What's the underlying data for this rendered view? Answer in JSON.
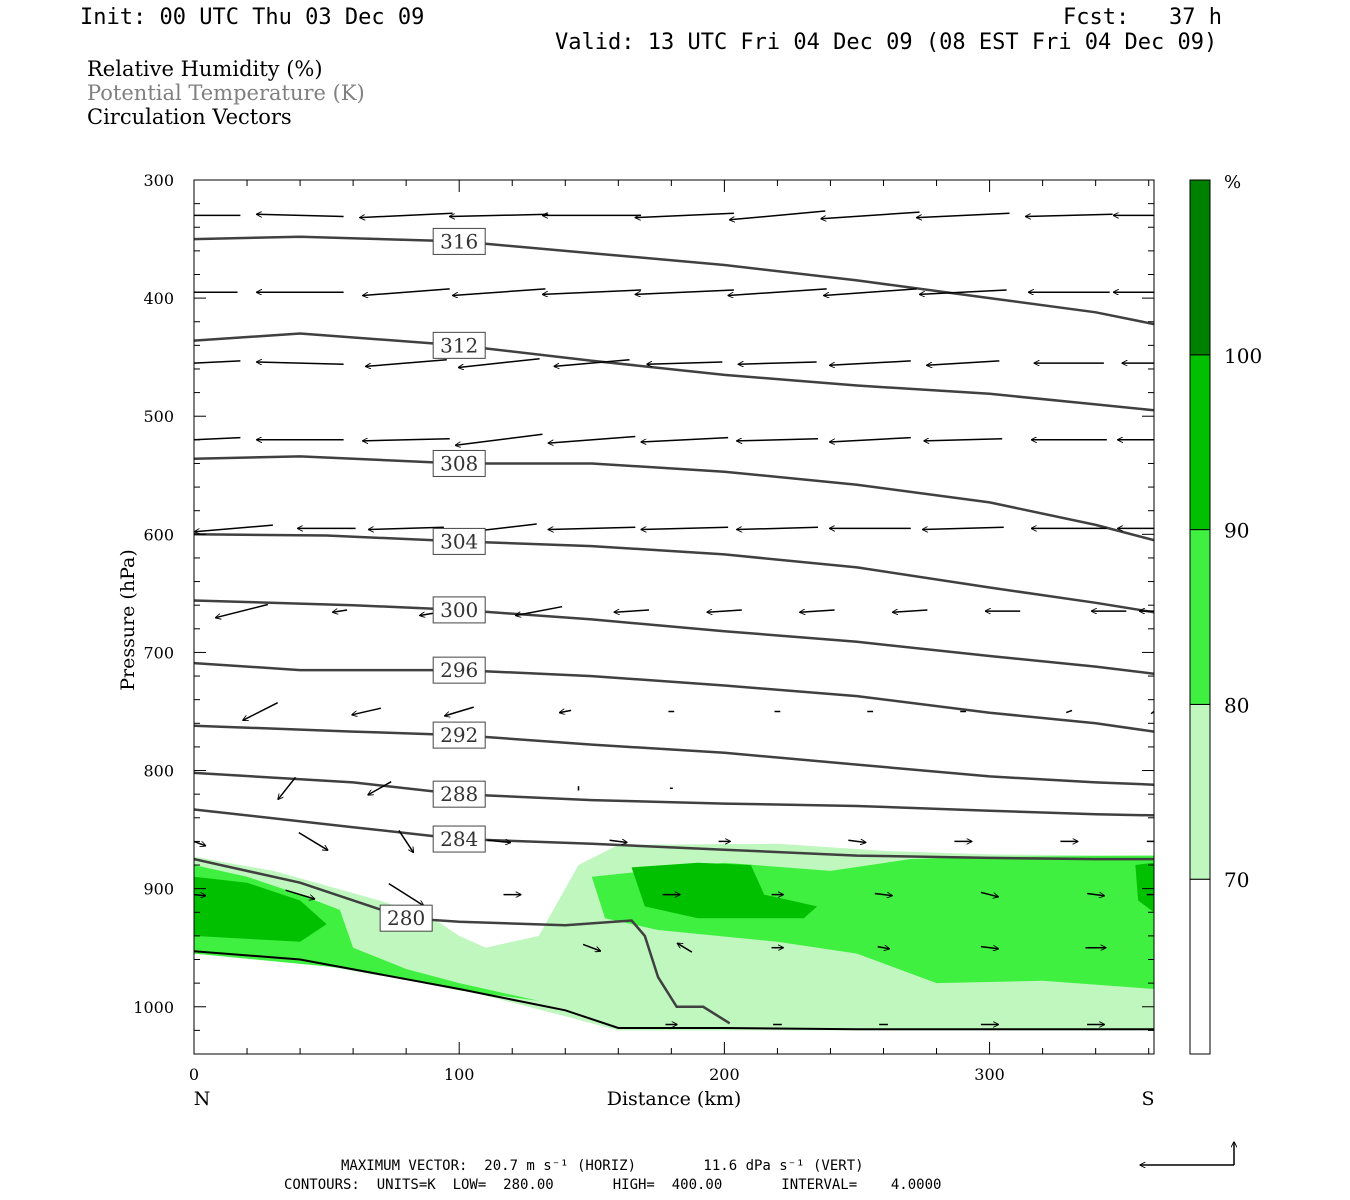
{
  "header": {
    "init": "Init: 00 UTC Thu 03 Dec 09",
    "fcst": "Fcst:   37 h",
    "valid": "Valid: 13 UTC Fri 04 Dec 09 (08 EST Fri 04 Dec 09)"
  },
  "legend": {
    "rh": "Relative Humidity (%)",
    "theta": "Potential Temperature (K)",
    "vectors": "Circulation Vectors"
  },
  "colors": {
    "rh70": "#bff7bf",
    "rh80": "#40f040",
    "rh90": "#00c000",
    "rh100": "#008000",
    "contour": "#404040",
    "theta_text": "#808080"
  },
  "chart_data": {
    "type": "cross-section",
    "xlabel": "Distance (km)",
    "ylabel": "Pressure (hPa)",
    "xlim": [
      0,
      362
    ],
    "ylim": [
      1040,
      300
    ],
    "x_ticks": [
      "0",
      "100",
      "200",
      "300"
    ],
    "x_tick_values": [
      0,
      100,
      200,
      300
    ],
    "y_ticks": [
      "300",
      "400",
      "500",
      "600",
      "700",
      "800",
      "900",
      "1000"
    ],
    "y_tick_values": [
      300,
      400,
      500,
      600,
      700,
      800,
      900,
      1000
    ],
    "end_labels": {
      "left": "N",
      "right": "S"
    },
    "colorbar": {
      "unit": "%",
      "labels": [
        "70",
        "80",
        "90",
        "100"
      ],
      "levels": [
        70,
        80,
        90,
        100
      ]
    },
    "theta_contours": [
      {
        "label": "316",
        "points": [
          [
            0,
            350
          ],
          [
            40,
            348
          ],
          [
            100,
            352
          ],
          [
            150,
            362
          ],
          [
            200,
            372
          ],
          [
            250,
            385
          ],
          [
            300,
            400
          ],
          [
            340,
            412
          ],
          [
            362,
            422
          ]
        ]
      },
      {
        "label": "312",
        "points": [
          [
            0,
            436
          ],
          [
            40,
            430
          ],
          [
            100,
            440
          ],
          [
            150,
            453
          ],
          [
            200,
            465
          ],
          [
            250,
            474
          ],
          [
            300,
            481
          ],
          [
            340,
            490
          ],
          [
            362,
            495
          ]
        ]
      },
      {
        "label": "308",
        "points": [
          [
            0,
            536
          ],
          [
            40,
            534
          ],
          [
            100,
            540
          ],
          [
            150,
            540
          ],
          [
            200,
            547
          ],
          [
            250,
            558
          ],
          [
            300,
            573
          ],
          [
            340,
            592
          ],
          [
            362,
            605
          ]
        ]
      },
      {
        "label": "304",
        "points": [
          [
            0,
            600
          ],
          [
            50,
            601
          ],
          [
            100,
            606
          ],
          [
            150,
            610
          ],
          [
            200,
            617
          ],
          [
            250,
            628
          ],
          [
            300,
            645
          ],
          [
            340,
            658
          ],
          [
            362,
            666
          ]
        ]
      },
      {
        "label": "300",
        "points": [
          [
            0,
            656
          ],
          [
            60,
            660
          ],
          [
            100,
            664
          ],
          [
            150,
            672
          ],
          [
            200,
            682
          ],
          [
            250,
            691
          ],
          [
            300,
            703
          ],
          [
            340,
            712
          ],
          [
            362,
            718
          ]
        ]
      },
      {
        "label": "296",
        "points": [
          [
            0,
            709
          ],
          [
            40,
            715
          ],
          [
            100,
            715
          ],
          [
            150,
            720
          ],
          [
            200,
            728
          ],
          [
            250,
            737
          ],
          [
            300,
            751
          ],
          [
            340,
            760
          ],
          [
            362,
            767
          ]
        ]
      },
      {
        "label": "292",
        "points": [
          [
            0,
            762
          ],
          [
            60,
            767
          ],
          [
            100,
            770
          ],
          [
            150,
            778
          ],
          [
            200,
            785
          ],
          [
            250,
            795
          ],
          [
            300,
            805
          ],
          [
            340,
            810
          ],
          [
            362,
            812
          ]
        ]
      },
      {
        "label": "288",
        "points": [
          [
            0,
            802
          ],
          [
            60,
            810
          ],
          [
            100,
            820
          ],
          [
            150,
            825
          ],
          [
            200,
            828
          ],
          [
            250,
            830
          ],
          [
            300,
            834
          ],
          [
            340,
            837
          ],
          [
            362,
            838
          ]
        ]
      },
      {
        "label": "284",
        "points": [
          [
            0,
            833
          ],
          [
            60,
            848
          ],
          [
            100,
            858
          ],
          [
            150,
            862
          ],
          [
            200,
            867
          ],
          [
            250,
            872
          ],
          [
            300,
            874
          ],
          [
            340,
            875
          ],
          [
            362,
            875
          ]
        ]
      },
      {
        "label": "280",
        "points": [
          [
            0,
            875
          ],
          [
            40,
            895
          ],
          [
            80,
            925
          ],
          [
            100,
            928
          ],
          [
            140,
            931
          ],
          [
            165,
            927
          ],
          [
            170,
            940
          ],
          [
            175,
            975
          ],
          [
            182,
            1000
          ],
          [
            192,
            1000
          ],
          [
            202,
            1014
          ]
        ]
      }
    ],
    "ground": [
      [
        0,
        953
      ],
      [
        40,
        960
      ],
      [
        100,
        985
      ],
      [
        140,
        1003
      ],
      [
        160,
        1018
      ],
      [
        200,
        1018
      ],
      [
        250,
        1019
      ],
      [
        300,
        1019
      ],
      [
        362,
        1019
      ]
    ],
    "rh_regions": [
      {
        "level": 70,
        "points": [
          [
            0,
            873
          ],
          [
            30,
            885
          ],
          [
            70,
            910
          ],
          [
            90,
            925
          ],
          [
            100,
            940
          ],
          [
            110,
            950
          ],
          [
            130,
            940
          ],
          [
            145,
            880
          ],
          [
            160,
            863
          ],
          [
            220,
            862
          ],
          [
            260,
            868
          ],
          [
            300,
            871
          ],
          [
            362,
            872
          ],
          [
            362,
            1020
          ],
          [
            160,
            1020
          ],
          [
            140,
            1008
          ],
          [
            100,
            985
          ],
          [
            40,
            962
          ],
          [
            0,
            955
          ]
        ]
      },
      {
        "level": 80,
        "points": [
          [
            0,
            880
          ],
          [
            20,
            890
          ],
          [
            40,
            905
          ],
          [
            55,
            918
          ],
          [
            60,
            950
          ],
          [
            80,
            968
          ],
          [
            100,
            980
          ],
          [
            120,
            990
          ],
          [
            130,
            995
          ],
          [
            100,
            986
          ],
          [
            60,
            968
          ],
          [
            0,
            955
          ]
        ]
      },
      {
        "level": 80,
        "points": [
          [
            150,
            890
          ],
          [
            200,
            878
          ],
          [
            240,
            885
          ],
          [
            270,
            875
          ],
          [
            300,
            873
          ],
          [
            362,
            872
          ],
          [
            362,
            985
          ],
          [
            320,
            978
          ],
          [
            280,
            980
          ],
          [
            250,
            955
          ],
          [
            220,
            945
          ],
          [
            175,
            935
          ],
          [
            155,
            925
          ]
        ]
      },
      {
        "level": 90,
        "points": [
          [
            0,
            890
          ],
          [
            20,
            895
          ],
          [
            40,
            910
          ],
          [
            50,
            930
          ],
          [
            40,
            945
          ],
          [
            0,
            940
          ]
        ]
      },
      {
        "level": 90,
        "points": [
          [
            165,
            882
          ],
          [
            190,
            878
          ],
          [
            210,
            880
          ],
          [
            215,
            905
          ],
          [
            235,
            915
          ],
          [
            230,
            925
          ],
          [
            190,
            925
          ],
          [
            170,
            915
          ]
        ]
      },
      {
        "level": 90,
        "points": [
          [
            355,
            880
          ],
          [
            362,
            878
          ],
          [
            362,
            920
          ],
          [
            356,
            910
          ]
        ]
      }
    ],
    "contours_label_meta": {
      "units": "K",
      "low": 280.0,
      "high": 400.0,
      "interval": 4.0
    },
    "vector_rows": [
      {
        "p": 330,
        "x": [
          0,
          40,
          80,
          115,
          150,
          185,
          220,
          255,
          290,
          330,
          362
        ],
        "u": [
          -32,
          -30,
          -32,
          -34,
          -34,
          -34,
          -33,
          -34,
          -32,
          -30,
          -28
        ],
        "w": [
          0,
          1,
          -2,
          -1,
          0,
          -2,
          -4,
          -3,
          -2,
          -1,
          0
        ]
      },
      {
        "p": 395,
        "x": [
          0,
          40,
          80,
          115,
          150,
          185,
          220,
          255,
          290,
          330,
          362
        ],
        "u": [
          -30,
          -30,
          -30,
          -32,
          -34,
          -34,
          -34,
          -32,
          -30,
          -28,
          -28
        ],
        "w": [
          0,
          0,
          -3,
          -3,
          -2,
          -2,
          -3,
          -3,
          -2,
          0,
          0
        ]
      },
      {
        "p": 455,
        "x": [
          0,
          40,
          80,
          115,
          150,
          185,
          220,
          255,
          290,
          330,
          362
        ],
        "u": [
          -32,
          -30,
          -28,
          -28,
          -26,
          -26,
          -27,
          -28,
          -25,
          -24,
          -22
        ],
        "w": [
          -2,
          1,
          -3,
          -4,
          -3,
          -1,
          -1,
          -2,
          -2,
          0,
          0
        ]
      },
      {
        "p": 520,
        "x": [
          0,
          40,
          80,
          115,
          150,
          185,
          220,
          255,
          290,
          330,
          362
        ],
        "u": [
          -32,
          -30,
          -30,
          -30,
          -30,
          -30,
          -28,
          -28,
          -27,
          -26,
          -25
        ],
        "w": [
          -2,
          0,
          -1,
          -5,
          -3,
          -2,
          -1,
          -2,
          -1,
          0,
          0
        ]
      },
      {
        "p": 595,
        "x": [
          15,
          50,
          80,
          115,
          150,
          185,
          220,
          255,
          290,
          330,
          362
        ],
        "u": [
          -27,
          -20,
          -26,
          -26,
          -30,
          -30,
          -28,
          -28,
          -28,
          -26,
          -25
        ],
        "w": [
          -3,
          0,
          -1,
          -4,
          -1,
          -1,
          -1,
          0,
          -1,
          0,
          0
        ]
      },
      {
        "p": 665,
        "x": [
          18,
          55,
          95,
          130,
          165,
          200,
          235,
          270,
          305,
          345,
          362
        ],
        "u": [
          -18,
          -5,
          -18,
          -16,
          -12,
          -12,
          -12,
          -12,
          -12,
          -12,
          -10
        ],
        "w": [
          -6,
          -1,
          -4,
          -4,
          -1,
          -1,
          -1,
          -1,
          0,
          0,
          0
        ]
      },
      {
        "p": 750,
        "x": [
          25,
          65,
          100,
          140,
          180,
          220,
          255,
          290,
          330,
          362
        ],
        "u": [
          -12,
          -10,
          -10,
          -4,
          -2,
          -2,
          -2,
          -2,
          -2,
          -2
        ],
        "w": [
          -8,
          -3,
          -4,
          -1,
          0,
          0,
          0,
          0,
          -1,
          -2
        ]
      },
      {
        "p": 815,
        "x": [
          35,
          70,
          105,
          145,
          180,
          220,
          255,
          290,
          330,
          362
        ],
        "u": [
          -6,
          -8,
          -8,
          0,
          1,
          0,
          0,
          0,
          0,
          0
        ],
        "w": [
          -10,
          -6,
          -1,
          -2,
          0,
          0,
          0,
          0,
          0,
          0
        ]
      },
      {
        "p": 860,
        "x": [
          0,
          45,
          80,
          115,
          160,
          200,
          250,
          290,
          330,
          362
        ],
        "u": [
          8,
          10,
          5,
          8,
          6,
          4,
          6,
          6,
          6,
          5
        ],
        "w": [
          -4,
          -8,
          -10,
          -1,
          -1,
          0,
          -1,
          0,
          0,
          0
        ]
      },
      {
        "p": 905,
        "x": [
          0,
          40,
          80,
          120,
          180,
          220,
          260,
          300,
          340,
          362
        ],
        "u": [
          8,
          10,
          12,
          6,
          6,
          4,
          6,
          6,
          6,
          5
        ],
        "w": [
          -1,
          -4,
          -10,
          0,
          0,
          0,
          -1,
          -2,
          -1,
          0
        ]
      },
      {
        "p": 950,
        "x": [
          150,
          185,
          220,
          260,
          300,
          340
        ],
        "u": [
          6,
          -5,
          4,
          4,
          6,
          7
        ],
        "w": [
          -3,
          4,
          0,
          -1,
          -1,
          0
        ]
      },
      {
        "p": 1015,
        "x": [
          180,
          220,
          260,
          300,
          340
        ],
        "u": [
          4,
          3,
          3,
          6,
          6
        ],
        "w": [
          0,
          0,
          0,
          0,
          0
        ]
      }
    ]
  },
  "footer": {
    "max_vector": "MAXIMUM VECTOR:  20.7 m s⁻¹ (HORIZ)        11.6 dPa s⁻¹ (VERT)",
    "contours": "CONTOURS:  UNITS=K  LOW=  280.00       HIGH=  400.00       INTERVAL=    4.0000"
  }
}
